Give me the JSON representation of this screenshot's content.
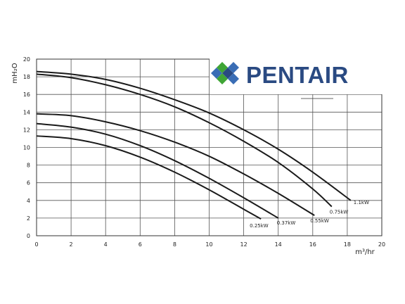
{
  "chart_data": {
    "type": "line",
    "title": "",
    "xlabel": "m³/hr",
    "ylabel": "mH₂O",
    "xlim": [
      0,
      20
    ],
    "ylim": [
      0,
      20
    ],
    "xticks": [
      0,
      2,
      4,
      6,
      8,
      10,
      12,
      14,
      16,
      18,
      20
    ],
    "yticks": [
      0,
      2,
      4,
      6,
      8,
      10,
      12,
      14,
      16,
      18,
      20
    ],
    "grid": true,
    "series": [
      {
        "name": "0.25kW",
        "x": [
          0,
          2,
          4,
          6,
          8,
          10,
          12,
          13.0
        ],
        "y": [
          11.3,
          11.0,
          10.2,
          8.9,
          7.2,
          5.2,
          3.0,
          1.9
        ]
      },
      {
        "name": "0.37kW",
        "x": [
          0,
          2,
          4,
          6,
          8,
          10,
          12,
          14.0
        ],
        "y": [
          12.7,
          12.3,
          11.5,
          10.2,
          8.5,
          6.5,
          4.3,
          2.0
        ]
      },
      {
        "name": "0.55kW",
        "x": [
          0,
          2,
          4,
          6,
          8,
          10,
          12,
          14,
          16.1
        ],
        "y": [
          13.8,
          13.6,
          12.9,
          11.9,
          10.6,
          9.0,
          7.0,
          4.8,
          2.3
        ]
      },
      {
        "name": "0.75kW",
        "x": [
          0,
          2,
          4,
          6,
          8,
          10,
          12,
          14,
          16,
          17.1
        ],
        "y": [
          18.3,
          17.9,
          17.1,
          16.0,
          14.6,
          12.8,
          10.7,
          8.3,
          5.3,
          3.3
        ]
      },
      {
        "name": "1.1kW",
        "x": [
          0,
          2,
          4,
          6,
          8,
          10,
          12,
          14,
          16,
          18.2
        ],
        "y": [
          18.6,
          18.3,
          17.7,
          16.7,
          15.4,
          13.9,
          12.0,
          9.8,
          7.2,
          4.0
        ]
      }
    ]
  },
  "logo": {
    "text": "PENTAIR",
    "icon": "pentair-diamond-icon",
    "colors": {
      "navy": "#2a4a82",
      "green": "#3fa535",
      "blue": "#3a6db5"
    }
  }
}
